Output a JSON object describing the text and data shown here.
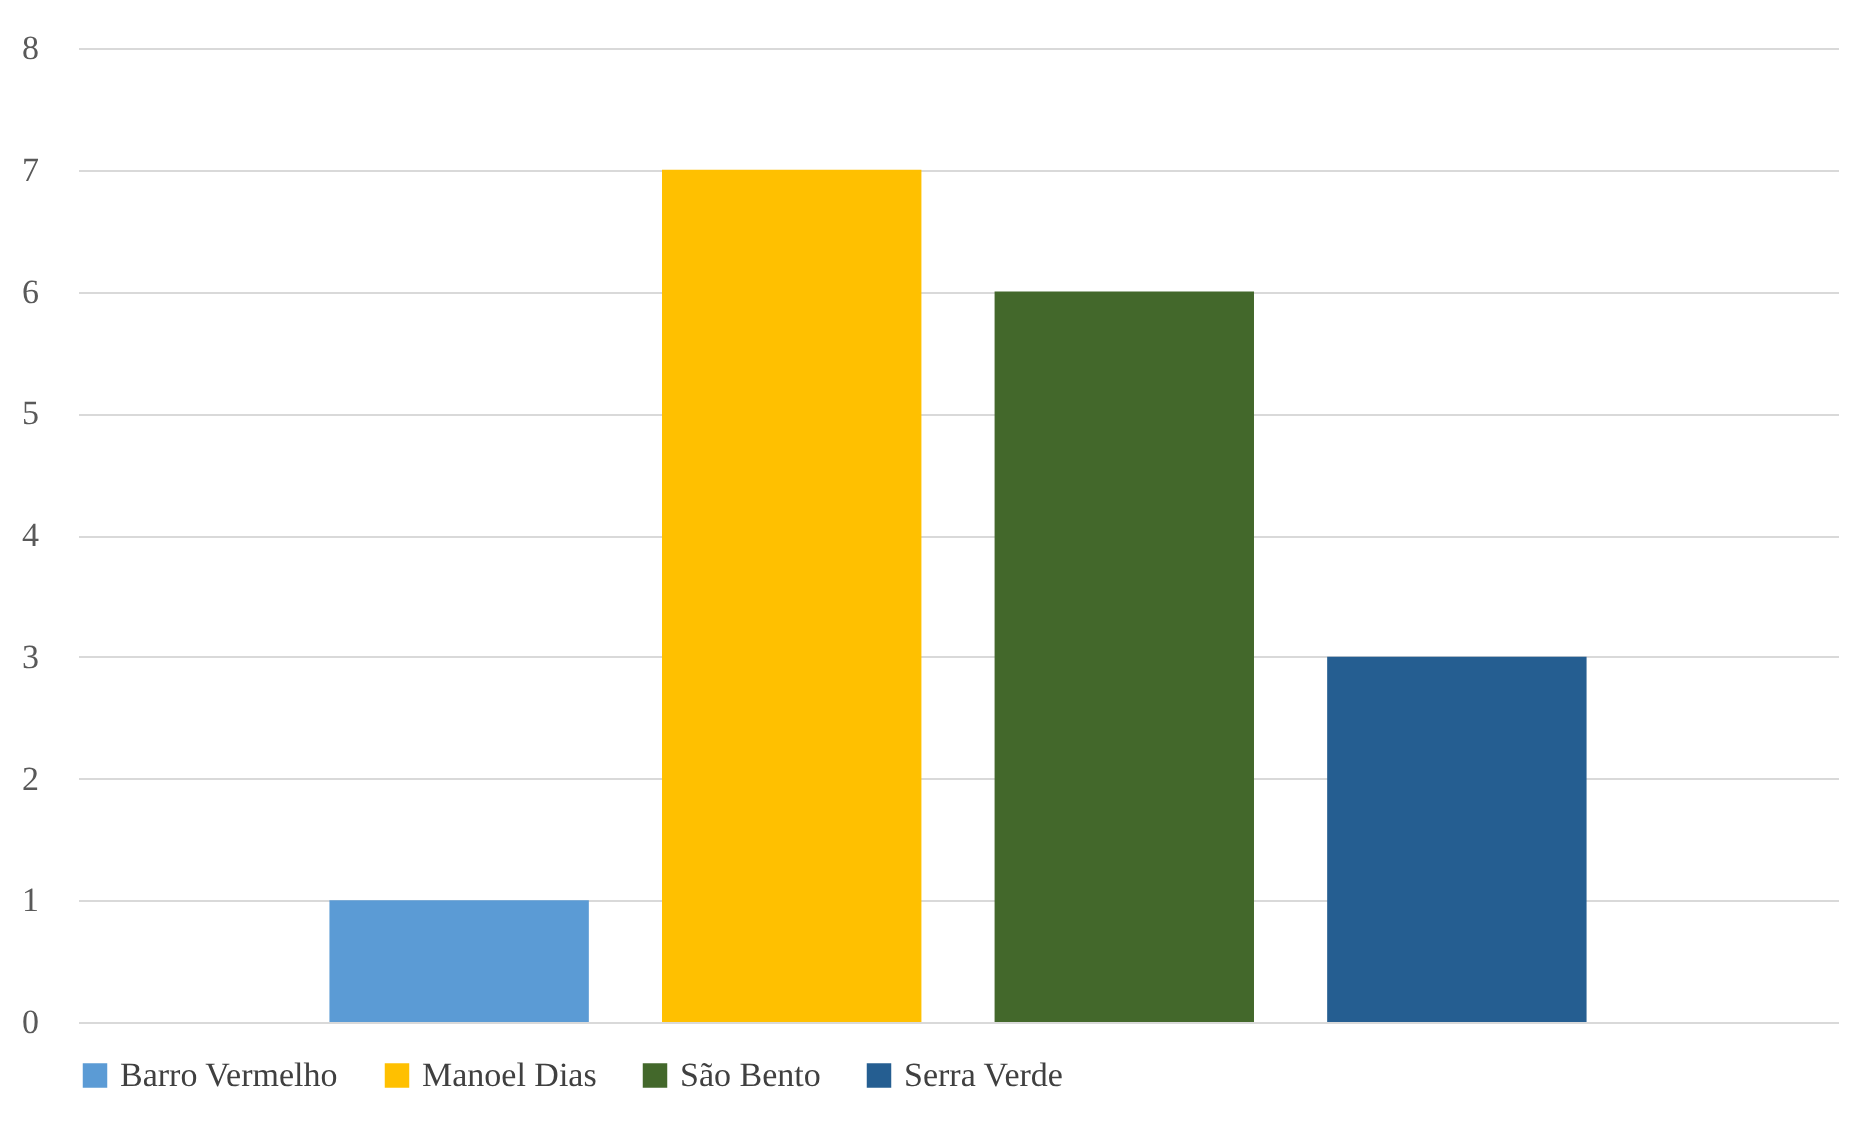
{
  "chart_data": {
    "type": "bar",
    "categories": [
      null
    ],
    "series": [
      {
        "name": "Barro Vermelho",
        "color": "#5b9bd5",
        "values": [
          1
        ]
      },
      {
        "name": "Manoel Dias",
        "color": "#ffc000",
        "values": [
          7
        ]
      },
      {
        "name": "São Bento",
        "color": "#43682b",
        "values": [
          6
        ]
      },
      {
        "name": "Serra Verde",
        "color": "#255e91",
        "values": [
          3
        ]
      }
    ],
    "ylim": [
      0,
      8
    ],
    "yticks": [
      0,
      1,
      2,
      3,
      4,
      5,
      6,
      7,
      8
    ],
    "grid": "y",
    "legend": "bottom",
    "tick_labels": "y"
  }
}
